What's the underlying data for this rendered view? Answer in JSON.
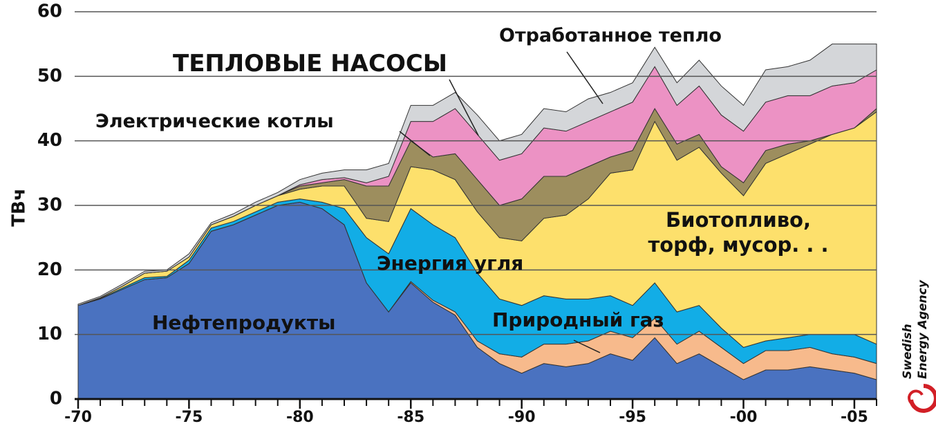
{
  "chart_data": {
    "type": "stacked_area",
    "y_label": "ТВч",
    "x": [
      1970,
      1971,
      1972,
      1973,
      1974,
      1975,
      1976,
      1977,
      1978,
      1979,
      1980,
      1981,
      1982,
      1983,
      1984,
      1985,
      1986,
      1987,
      1988,
      1989,
      1990,
      1991,
      1992,
      1993,
      1994,
      1995,
      1996,
      1997,
      1998,
      1999,
      2000,
      2001,
      2002,
      2003,
      2004,
      2005,
      2006
    ],
    "xlim": [
      1970,
      2006
    ],
    "xticks": [
      {
        "value": 1970,
        "label": "-70"
      },
      {
        "value": 1975,
        "label": "-75"
      },
      {
        "value": 1980,
        "label": "-80"
      },
      {
        "value": 1985,
        "label": "-85"
      },
      {
        "value": 1990,
        "label": "-90"
      },
      {
        "value": 1995,
        "label": "-95"
      },
      {
        "value": 2000,
        "label": "-00"
      },
      {
        "value": 2005,
        "label": "-05"
      }
    ],
    "ylim": [
      0,
      60
    ],
    "yticks": [
      0,
      10,
      20,
      30,
      40,
      50,
      60
    ],
    "grid": true,
    "series": [
      {
        "name": "Нефтепродукты",
        "color": "#4a72c0",
        "values": [
          14.5,
          15.5,
          17,
          18.5,
          18.8,
          21,
          26,
          27,
          28.5,
          30,
          30.5,
          29.5,
          27,
          18,
          13.5,
          18,
          15,
          13,
          8,
          5.5,
          4,
          5.5,
          5,
          5.5,
          7,
          6,
          9.5,
          5.5,
          7,
          5,
          3,
          4.5,
          4.5,
          5,
          4.5,
          4,
          3
        ]
      },
      {
        "name": "Природный газ",
        "color": "#f7ba8c",
        "values": [
          0,
          0,
          0,
          0,
          0,
          0,
          0,
          0,
          0,
          0,
          0,
          0,
          0,
          0,
          0,
          0.2,
          0.3,
          0.5,
          1,
          1.5,
          2.5,
          3,
          3.5,
          3.5,
          3.5,
          3.5,
          3,
          3,
          3.5,
          3,
          2.5,
          3,
          3,
          3,
          2.5,
          2.5,
          2.5
        ]
      },
      {
        "name": "Энергия угля",
        "color": "#12ade6",
        "values": [
          0,
          0.1,
          0.2,
          0.3,
          0.2,
          0.5,
          0.5,
          0.5,
          0.5,
          0.5,
          0.5,
          1,
          2.5,
          7,
          9,
          11.3,
          11.7,
          11.5,
          10.5,
          8.5,
          8,
          7.5,
          7,
          6.5,
          5.5,
          5,
          5.5,
          5,
          4,
          3,
          2.5,
          1.5,
          2,
          2,
          3,
          3.5,
          3
        ]
      },
      {
        "name": "Биотопливо, торф, мусор. . .",
        "color": "#fde06c",
        "values": [
          0,
          0.1,
          0.3,
          0.7,
          0.8,
          0.5,
          0.5,
          0.8,
          1,
          1,
          1.5,
          2.5,
          3.5,
          3,
          5,
          6.5,
          8.5,
          9,
          9.5,
          9.5,
          10,
          12,
          13,
          15.5,
          19,
          21,
          25,
          23.5,
          24.5,
          24,
          23.5,
          27.5,
          28.5,
          29.5,
          31,
          32,
          36
        ]
      },
      {
        "name": "Электрические котлы",
        "color": "#9d8e5e",
        "values": [
          0,
          0,
          0,
          0,
          0,
          0,
          0,
          0,
          0,
          0,
          0.5,
          0.5,
          1,
          5,
          5.5,
          4,
          2,
          4,
          5,
          5,
          6.5,
          6.5,
          6,
          5,
          2.5,
          3,
          2,
          2.5,
          2,
          1,
          2,
          2,
          1.5,
          0.5,
          0,
          0,
          0.5
        ]
      },
      {
        "name": "ТЕПЛОВЫЕ НАСОСЫ",
        "color": "#ec92c4",
        "values": [
          0,
          0,
          0,
          0,
          0,
          0,
          0,
          0,
          0,
          0,
          0.2,
          0.5,
          0.3,
          0.5,
          1.5,
          3,
          5.5,
          7,
          7,
          7,
          7,
          7.5,
          7,
          7,
          7,
          7.5,
          6.5,
          6,
          7.5,
          8,
          8,
          7.5,
          7.5,
          7,
          7.5,
          7,
          6
        ]
      },
      {
        "name": "Отработанное тепло",
        "color": "#d4d6d9",
        "values": [
          0.2,
          0.2,
          0.3,
          0.3,
          0.2,
          0.5,
          0.3,
          0.4,
          0.5,
          0.5,
          0.8,
          1,
          1.2,
          2,
          2,
          2.5,
          2.5,
          2.5,
          3,
          3,
          3,
          3,
          3,
          3.5,
          3,
          3,
          3,
          3.5,
          4,
          4.5,
          4,
          5,
          4.5,
          5.5,
          6.5,
          6,
          4
        ]
      }
    ],
    "logo": {
      "line1": "Swedish",
      "line2": "Energy Agency"
    }
  }
}
